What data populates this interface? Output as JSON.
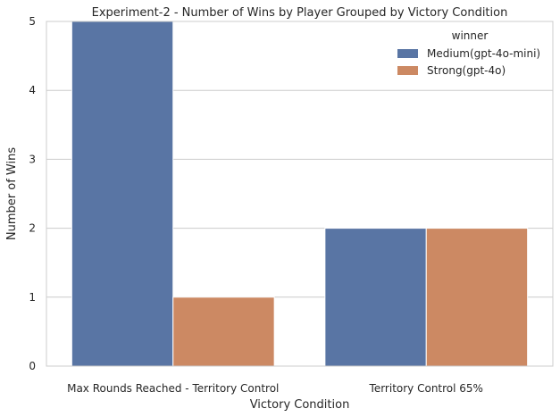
{
  "chart_data": {
    "type": "bar",
    "title": "Experiment-2 - Number of Wins by Player Grouped by Victory Condition",
    "xlabel": "Victory Condition",
    "ylabel": "Number of Wins",
    "categories": [
      "Max Rounds Reached - Territory Control",
      "Territory Control 65%"
    ],
    "series": [
      {
        "name": "Medium(gpt-4o-mini)",
        "values": [
          5,
          2
        ],
        "color": "#5975a4"
      },
      {
        "name": "Strong(gpt-4o)",
        "values": [
          1,
          2
        ],
        "color": "#cc8963"
      }
    ],
    "ylim": [
      0,
      5
    ],
    "yticks": [
      "0",
      "1",
      "2",
      "3",
      "4",
      "5"
    ],
    "grid": true,
    "legend": {
      "title": "winner",
      "position": "top-right"
    }
  }
}
